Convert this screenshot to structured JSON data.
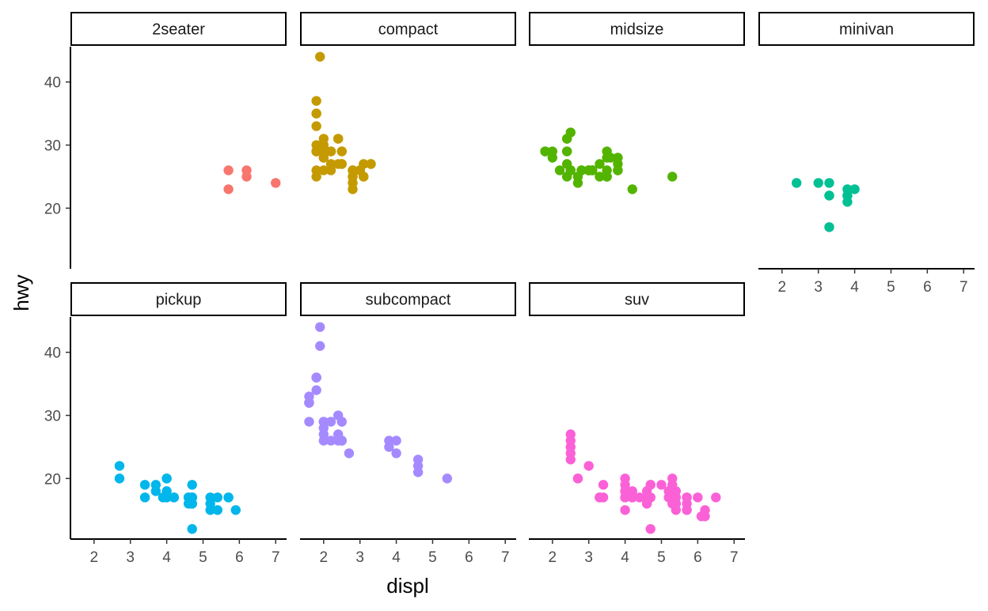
{
  "chart_data": {
    "type": "scatter",
    "xlabel": "displ",
    "ylabel": "hwy",
    "xlim": [
      1.35,
      7.3
    ],
    "ylim": [
      10.4,
      45.6
    ],
    "x_ticks": [
      2,
      3,
      4,
      5,
      6,
      7
    ],
    "y_ticks": [
      20,
      30,
      40
    ],
    "grid": false,
    "legend": "none",
    "panels": [
      {
        "name": "2seater",
        "color": "#F8766D",
        "points": [
          [
            5.7,
            26
          ],
          [
            5.7,
            23
          ],
          [
            6.2,
            26
          ],
          [
            6.2,
            25
          ],
          [
            7.0,
            24
          ]
        ]
      },
      {
        "name": "compact",
        "color": "#C49A00",
        "points": [
          [
            1.8,
            29
          ],
          [
            1.8,
            29
          ],
          [
            2.0,
            31
          ],
          [
            2.0,
            30
          ],
          [
            2.8,
            26
          ],
          [
            2.8,
            26
          ],
          [
            3.1,
            27
          ],
          [
            1.8,
            26
          ],
          [
            1.8,
            25
          ],
          [
            2.0,
            28
          ],
          [
            2.0,
            29
          ],
          [
            2.8,
            25
          ],
          [
            2.8,
            25
          ],
          [
            3.1,
            25
          ],
          [
            3.1,
            25
          ],
          [
            2.2,
            27
          ],
          [
            2.2,
            29
          ],
          [
            2.4,
            31
          ],
          [
            2.4,
            31
          ],
          [
            3.0,
            26
          ],
          [
            3.0,
            26
          ],
          [
            3.3,
            27
          ],
          [
            1.8,
            29
          ],
          [
            1.8,
            29
          ],
          [
            1.8,
            30
          ],
          [
            1.8,
            33
          ],
          [
            1.8,
            35
          ],
          [
            1.8,
            37
          ],
          [
            1.8,
            35
          ],
          [
            1.9,
            44
          ],
          [
            2.0,
            29
          ],
          [
            2.0,
            26
          ],
          [
            2.0,
            29
          ],
          [
            2.0,
            29
          ],
          [
            2.8,
            23
          ],
          [
            2.5,
            29
          ],
          [
            2.2,
            26
          ],
          [
            2.2,
            29
          ],
          [
            2.2,
            29
          ],
          [
            2.4,
            27
          ],
          [
            2.5,
            27
          ],
          [
            3.3,
            27
          ],
          [
            2.8,
            24
          ],
          [
            3.0,
            26
          ],
          [
            2.5,
            27
          ],
          [
            2.0,
            29
          ],
          [
            2.0,
            28
          ],
          [
            2.5,
            29
          ]
        ]
      },
      {
        "name": "midsize",
        "color": "#53B400",
        "points": [
          [
            2.4,
            27
          ],
          [
            3.0,
            26
          ],
          [
            3.1,
            26
          ],
          [
            3.5,
            25
          ],
          [
            3.6,
            28
          ],
          [
            2.8,
            26
          ],
          [
            2.8,
            26
          ],
          [
            3.1,
            26
          ],
          [
            3.1,
            26
          ],
          [
            1.8,
            29
          ],
          [
            1.8,
            29
          ],
          [
            2.0,
            28
          ],
          [
            2.5,
            32
          ],
          [
            2.4,
            31
          ],
          [
            2.4,
            29
          ],
          [
            2.5,
            26
          ],
          [
            2.5,
            26
          ],
          [
            3.3,
            27
          ],
          [
            2.2,
            26
          ],
          [
            2.4,
            31
          ],
          [
            2.4,
            29
          ],
          [
            3.0,
            26
          ],
          [
            3.5,
            25
          ],
          [
            3.0,
            26
          ],
          [
            3.5,
            29
          ],
          [
            3.0,
            26
          ],
          [
            2.4,
            25
          ],
          [
            2.7,
            25
          ],
          [
            3.5,
            26
          ],
          [
            3.8,
            28
          ],
          [
            3.8,
            27
          ],
          [
            4.2,
            23
          ],
          [
            5.3,
            25
          ],
          [
            3.5,
            28
          ],
          [
            3.8,
            26
          ],
          [
            1.8,
            29
          ],
          [
            2.0,
            29
          ],
          [
            3.8,
            26
          ],
          [
            2.5,
            26
          ],
          [
            2.5,
            26
          ],
          [
            3.3,
            25
          ],
          [
            2.7,
            24
          ]
        ]
      },
      {
        "name": "minivan",
        "color": "#00C094",
        "points": [
          [
            2.4,
            24
          ],
          [
            3.0,
            24
          ],
          [
            3.3,
            22
          ],
          [
            3.3,
            22
          ],
          [
            3.3,
            24
          ],
          [
            3.3,
            17
          ],
          [
            3.8,
            22
          ],
          [
            3.8,
            21
          ],
          [
            3.8,
            23
          ],
          [
            4.0,
            23
          ],
          [
            3.8,
            22
          ]
        ]
      },
      {
        "name": "pickup",
        "color": "#00B6EB",
        "points": [
          [
            3.7,
            19
          ],
          [
            3.7,
            18
          ],
          [
            3.9,
            17
          ],
          [
            3.9,
            17
          ],
          [
            4.7,
            16
          ],
          [
            4.7,
            16
          ],
          [
            4.7,
            12
          ],
          [
            5.2,
            17
          ],
          [
            5.2,
            15
          ],
          [
            4.7,
            17
          ],
          [
            4.7,
            17
          ],
          [
            5.2,
            16
          ],
          [
            5.7,
            17
          ],
          [
            5.9,
            15
          ],
          [
            4.2,
            17
          ],
          [
            4.2,
            17
          ],
          [
            4.6,
            17
          ],
          [
            4.6,
            16
          ],
          [
            4.6,
            17
          ],
          [
            5.4,
            15
          ],
          [
            5.4,
            17
          ],
          [
            2.7,
            20
          ],
          [
            2.7,
            22
          ],
          [
            4.0,
            17
          ],
          [
            4.0,
            20
          ],
          [
            3.4,
            19
          ],
          [
            3.4,
            17
          ],
          [
            4.0,
            20
          ],
          [
            4.0,
            18
          ],
          [
            4.7,
            17
          ],
          [
            4.7,
            19
          ],
          [
            4.7,
            16
          ],
          [
            5.7,
            17
          ]
        ]
      },
      {
        "name": "subcompact",
        "color": "#A58AFF",
        "points": [
          [
            3.8,
            26
          ],
          [
            3.8,
            25
          ],
          [
            4.0,
            26
          ],
          [
            4.0,
            24
          ],
          [
            4.6,
            21
          ],
          [
            4.6,
            22
          ],
          [
            4.6,
            23
          ],
          [
            5.4,
            20
          ],
          [
            1.6,
            33
          ],
          [
            1.6,
            32
          ],
          [
            1.6,
            32
          ],
          [
            1.6,
            29
          ],
          [
            1.6,
            32
          ],
          [
            1.8,
            34
          ],
          [
            1.8,
            36
          ],
          [
            1.8,
            36
          ],
          [
            2.0,
            29
          ],
          [
            2.4,
            26
          ],
          [
            2.4,
            27
          ],
          [
            2.4,
            30
          ],
          [
            2.5,
            26
          ],
          [
            2.5,
            29
          ],
          [
            2.5,
            26
          ],
          [
            2.2,
            26
          ],
          [
            2.2,
            29
          ],
          [
            2.5,
            26
          ],
          [
            2.7,
            24
          ],
          [
            1.8,
            36
          ],
          [
            1.9,
            44
          ],
          [
            1.9,
            41
          ],
          [
            2.0,
            28
          ],
          [
            2.0,
            29
          ],
          [
            2.0,
            26
          ],
          [
            2.0,
            27
          ],
          [
            2.5,
            29
          ]
        ]
      },
      {
        "name": "suv",
        "color": "#FB61D7",
        "points": [
          [
            4.2,
            17
          ],
          [
            4.2,
            17
          ],
          [
            4.6,
            16
          ],
          [
            4.6,
            18
          ],
          [
            5.3,
            17
          ],
          [
            5.3,
            16
          ],
          [
            5.3,
            20
          ],
          [
            5.7,
            15
          ],
          [
            6.0,
            17
          ],
          [
            5.7,
            15
          ],
          [
            5.7,
            17
          ],
          [
            6.2,
            15
          ],
          [
            6.2,
            14
          ],
          [
            6.5,
            17
          ],
          [
            4.0,
            18
          ],
          [
            4.0,
            15
          ],
          [
            4.6,
            17
          ],
          [
            5.4,
            15
          ],
          [
            5.4,
            16
          ],
          [
            4.0,
            18
          ],
          [
            4.6,
            17
          ],
          [
            4.7,
            19
          ],
          [
            4.7,
            17
          ],
          [
            4.7,
            19
          ],
          [
            4.7,
            12
          ],
          [
            5.7,
            17
          ],
          [
            6.1,
            14
          ],
          [
            4.0,
            17
          ],
          [
            4.2,
            17
          ],
          [
            4.4,
            17
          ],
          [
            4.6,
            16
          ],
          [
            5.4,
            18
          ],
          [
            5.4,
            17
          ],
          [
            5.4,
            16
          ],
          [
            4.0,
            17
          ],
          [
            4.0,
            18
          ],
          [
            4.6,
            17
          ],
          [
            5.0,
            19
          ],
          [
            4.2,
            17
          ],
          [
            4.2,
            18
          ],
          [
            4.6,
            17
          ],
          [
            4.6,
            17
          ],
          [
            5.3,
            17
          ],
          [
            2.5,
            25
          ],
          [
            2.5,
            24
          ],
          [
            2.5,
            27
          ],
          [
            2.5,
            25
          ],
          [
            2.5,
            26
          ],
          [
            2.5,
            23
          ],
          [
            2.7,
            20
          ],
          [
            2.7,
            20
          ],
          [
            3.4,
            19
          ],
          [
            3.4,
            17
          ],
          [
            4.0,
            20
          ],
          [
            4.7,
            17
          ],
          [
            3.3,
            17
          ],
          [
            3.3,
            17
          ],
          [
            4.0,
            19
          ],
          [
            5.2,
            18
          ],
          [
            5.2,
            17
          ],
          [
            5.3,
            19
          ],
          [
            5.7,
            16
          ],
          [
            3.0,
            22
          ],
          [
            3.3,
            17
          ]
        ]
      }
    ]
  }
}
